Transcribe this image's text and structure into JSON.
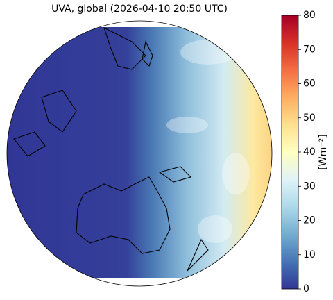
{
  "title": "UVA, global (2026-04-10 20:50 UTC)",
  "colorbar": {
    "label": "[Wm⁻²]",
    "lim": [
      0,
      80
    ],
    "ticks": [
      0,
      10,
      20,
      30,
      40,
      50,
      60,
      70,
      80
    ],
    "colormap": [
      "#313695",
      "#4575b4",
      "#74add1",
      "#abd9e9",
      "#e0f3f8",
      "#ffffbf",
      "#fee090",
      "#fdae61",
      "#f46d43",
      "#d73027",
      "#a50026"
    ]
  }
}
